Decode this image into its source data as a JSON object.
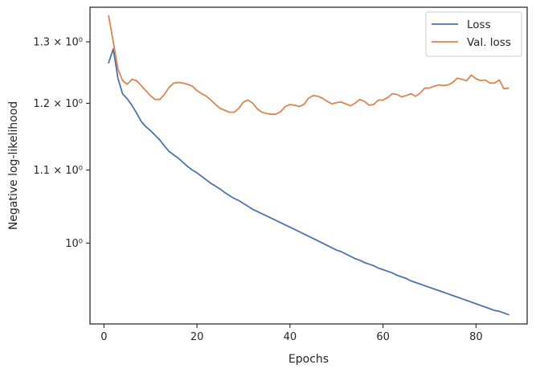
{
  "chart_data": {
    "type": "line",
    "xlabel": "Epochs",
    "ylabel": "Negative log-likelihood",
    "yscale": "log",
    "xlim": [
      -3,
      91
    ],
    "ylim": [
      0.9,
      1.36
    ],
    "x_ticks": [
      0,
      20,
      40,
      60,
      80
    ],
    "y_ticks": [
      {
        "value": 1.3,
        "label": "1.3 × 10⁰"
      },
      {
        "value": 1.2,
        "label": "1.2 × 10⁰"
      },
      {
        "value": 1.1,
        "label": "1.1 × 10⁰"
      },
      {
        "value": 1.0,
        "label": "10⁰"
      }
    ],
    "grid": false,
    "legend_position": "top-right",
    "series": [
      {
        "name": "Loss",
        "color": "#4c72b0",
        "x": [
          1,
          2,
          3,
          4,
          5,
          6,
          7,
          8,
          9,
          10,
          11,
          12,
          13,
          14,
          15,
          16,
          17,
          18,
          19,
          20,
          21,
          22,
          23,
          24,
          25,
          26,
          27,
          28,
          29,
          30,
          31,
          32,
          33,
          34,
          35,
          36,
          37,
          38,
          39,
          40,
          41,
          42,
          43,
          44,
          45,
          46,
          47,
          48,
          49,
          50,
          51,
          52,
          53,
          54,
          55,
          56,
          57,
          58,
          59,
          60,
          61,
          62,
          63,
          64,
          65,
          66,
          67,
          68,
          69,
          70,
          71,
          72,
          73,
          74,
          75,
          76,
          77,
          78,
          79,
          80,
          81,
          82,
          83,
          84,
          85,
          86,
          87
        ],
        "values": [
          1.265,
          1.288,
          1.24,
          1.215,
          1.207,
          1.197,
          1.185,
          1.172,
          1.164,
          1.158,
          1.151,
          1.144,
          1.135,
          1.127,
          1.122,
          1.117,
          1.111,
          1.105,
          1.1,
          1.096,
          1.091,
          1.086,
          1.081,
          1.077,
          1.073,
          1.068,
          1.064,
          1.06,
          1.057,
          1.053,
          1.049,
          1.045,
          1.042,
          1.039,
          1.036,
          1.033,
          1.03,
          1.027,
          1.024,
          1.021,
          1.018,
          1.015,
          1.012,
          1.009,
          1.006,
          1.003,
          1.0,
          0.997,
          0.994,
          0.991,
          0.989,
          0.986,
          0.983,
          0.98,
          0.978,
          0.975,
          0.973,
          0.971,
          0.968,
          0.966,
          0.964,
          0.962,
          0.959,
          0.957,
          0.955,
          0.952,
          0.95,
          0.948,
          0.946,
          0.944,
          0.942,
          0.94,
          0.938,
          0.936,
          0.934,
          0.932,
          0.93,
          0.928,
          0.926,
          0.924,
          0.922,
          0.92,
          0.918,
          0.916,
          0.915,
          0.913,
          0.911
        ]
      },
      {
        "name": "Val. loss",
        "color": "#dd8452",
        "x": [
          1,
          2,
          3,
          4,
          5,
          6,
          7,
          8,
          9,
          10,
          11,
          12,
          13,
          14,
          15,
          16,
          17,
          18,
          19,
          20,
          21,
          22,
          23,
          24,
          25,
          26,
          27,
          28,
          29,
          30,
          31,
          32,
          33,
          34,
          35,
          36,
          37,
          38,
          39,
          40,
          41,
          42,
          43,
          44,
          45,
          46,
          47,
          48,
          49,
          50,
          51,
          52,
          53,
          54,
          55,
          56,
          57,
          58,
          59,
          60,
          61,
          62,
          63,
          64,
          65,
          66,
          67,
          68,
          69,
          70,
          71,
          72,
          73,
          74,
          75,
          76,
          77,
          78,
          79,
          80,
          81,
          82,
          83,
          84,
          85,
          86,
          87
        ],
        "values": [
          1.345,
          1.3,
          1.255,
          1.236,
          1.23,
          1.238,
          1.236,
          1.228,
          1.22,
          1.212,
          1.206,
          1.206,
          1.214,
          1.225,
          1.232,
          1.233,
          1.232,
          1.23,
          1.227,
          1.22,
          1.215,
          1.211,
          1.205,
          1.198,
          1.192,
          1.189,
          1.186,
          1.186,
          1.192,
          1.202,
          1.205,
          1.2,
          1.191,
          1.186,
          1.184,
          1.183,
          1.183,
          1.187,
          1.195,
          1.198,
          1.197,
          1.195,
          1.198,
          1.208,
          1.212,
          1.211,
          1.208,
          1.203,
          1.199,
          1.201,
          1.202,
          1.199,
          1.196,
          1.2,
          1.206,
          1.203,
          1.197,
          1.198,
          1.205,
          1.205,
          1.209,
          1.215,
          1.214,
          1.21,
          1.212,
          1.215,
          1.211,
          1.216,
          1.224,
          1.224,
          1.227,
          1.229,
          1.228,
          1.229,
          1.233,
          1.24,
          1.238,
          1.236,
          1.245,
          1.239,
          1.236,
          1.237,
          1.232,
          1.232,
          1.237,
          1.223,
          1.224
        ]
      }
    ]
  }
}
